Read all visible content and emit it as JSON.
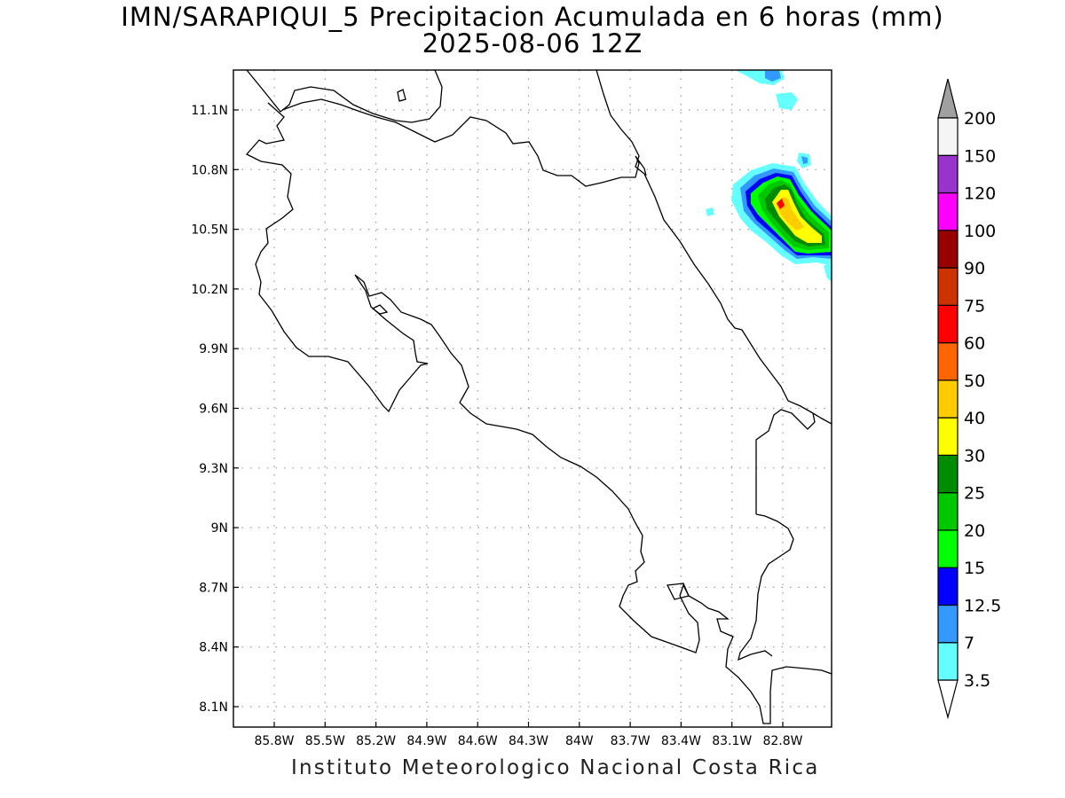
{
  "title": {
    "line1": "IMN/SARAPIQUI_5 Precipitacion Acumulada en 6 horas (mm)",
    "line2": "2025-08-06 12Z"
  },
  "footer": "Instituto Meteorologico Nacional Costa Rica",
  "map": {
    "lat_ticks": [
      {
        "value": 11.1,
        "label": "11.1N"
      },
      {
        "value": 10.8,
        "label": "10.8N"
      },
      {
        "value": 10.5,
        "label": "10.5N"
      },
      {
        "value": 10.2,
        "label": "10.2N"
      },
      {
        "value": 9.9,
        "label": "9.9N"
      },
      {
        "value": 9.6,
        "label": "9.6N"
      },
      {
        "value": 9.3,
        "label": "9.3N"
      },
      {
        "value": 9.0,
        "label": "9N"
      },
      {
        "value": 8.7,
        "label": "8.7N"
      },
      {
        "value": 8.4,
        "label": "8.4N"
      },
      {
        "value": 8.1,
        "label": "8.1N"
      }
    ],
    "lon_ticks": [
      {
        "value": -85.8,
        "label": "85.8W"
      },
      {
        "value": -85.5,
        "label": "85.5W"
      },
      {
        "value": -85.2,
        "label": "85.2W"
      },
      {
        "value": -84.9,
        "label": "84.9W"
      },
      {
        "value": -84.6,
        "label": "84.6W"
      },
      {
        "value": -84.3,
        "label": "84.3W"
      },
      {
        "value": -84.0,
        "label": "84W"
      },
      {
        "value": -83.7,
        "label": "83.7W"
      },
      {
        "value": -83.4,
        "label": "83.4W"
      },
      {
        "value": -83.1,
        "label": "83.1W"
      },
      {
        "value": -82.8,
        "label": "82.8W"
      }
    ],
    "gridlines": "dotted"
  },
  "colorbar": {
    "levels": [
      {
        "label": "3.5",
        "color": "#66ffff"
      },
      {
        "label": "7",
        "color": "#3399ff"
      },
      {
        "label": "12.5",
        "color": "#0000ff"
      },
      {
        "label": "15",
        "color": "#00ff00"
      },
      {
        "label": "20",
        "color": "#00c800"
      },
      {
        "label": "25",
        "color": "#008c00"
      },
      {
        "label": "30",
        "color": "#ffff00"
      },
      {
        "label": "40",
        "color": "#ffcc00"
      },
      {
        "label": "50",
        "color": "#ff6600"
      },
      {
        "label": "60",
        "color": "#ff0000"
      },
      {
        "label": "75",
        "color": "#cc3300"
      },
      {
        "label": "90",
        "color": "#990000"
      },
      {
        "label": "100",
        "color": "#ff00ff"
      },
      {
        "label": "120",
        "color": "#9933cc"
      },
      {
        "label": "150",
        "color": "#f5f5f5"
      },
      {
        "label": "200",
        "color": ""
      }
    ],
    "over_color": "#a0a0a0",
    "under_color": "#ffffff"
  },
  "precipitation_color_legend": {
    "light": "#66ffff",
    "moderate": "#3399ff",
    "heavy_blue": "#0000ff",
    "green_light": "#00ff00",
    "green": "#00c800",
    "green_dark": "#008c00",
    "yellow": "#ffff00",
    "orange_yellow": "#ffcc00",
    "red": "#ff0000"
  }
}
